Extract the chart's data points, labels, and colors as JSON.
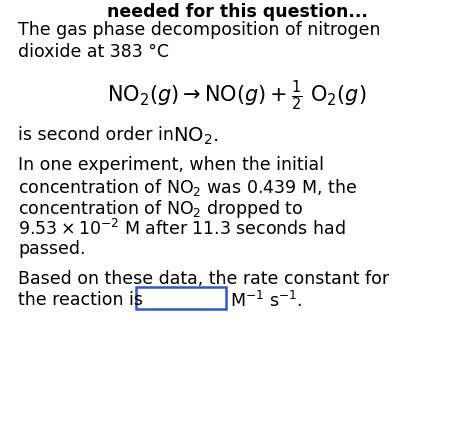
{
  "bg_color": "#ffffff",
  "text_color": "#000000",
  "box_color": "#3355cc",
  "font_size_body": 12.5,
  "font_size_eq": 15.0,
  "font_size_eq_no2": 15.5,
  "fig_width": 4.74,
  "fig_height": 4.21,
  "dpi": 100,
  "header": "needed for this question...",
  "p1_l1": "The gas phase decomposition of nitrogen",
  "p1_l2": "dioxide at 383 °C",
  "p2_pre": "is second order in ",
  "p2_no2": "NO",
  "p3_l1": "In one experiment, when the initial",
  "p3_l2_pre": "concentration of ",
  "p3_l2_no2": "NO",
  "p3_l2_post": " was 0.439 M, the",
  "p3_l3_pre": "concentration of ",
  "p3_l3_no2": "NO",
  "p3_l3_post": " dropped to",
  "p3_l4": "9.53 × 10",
  "p3_l4_exp": "−2",
  "p3_l4_post": " M after 11.3 seconds had",
  "p3_l5": "passed.",
  "p4_l1": "Based on these data, the rate constant for",
  "p4_l2_pre": "the reaction is ",
  "p4_l2_post": "M",
  "p4_l2_exp1": "−1",
  "p4_l2_s": " s",
  "p4_l2_exp2": "−1",
  "p4_l2_dot": "."
}
